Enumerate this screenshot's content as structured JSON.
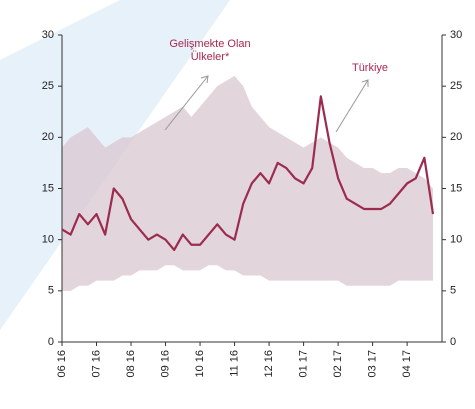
{
  "chart_data": {
    "type": "line",
    "categories": [
      "06 16",
      null,
      null,
      null,
      "07 16",
      null,
      null,
      null,
      "08 16",
      null,
      null,
      null,
      "09 16",
      null,
      null,
      null,
      "10 16",
      null,
      null,
      null,
      "11 16",
      null,
      null,
      null,
      "12 16",
      null,
      null,
      null,
      "01 17",
      null,
      null,
      null,
      "02 17",
      null,
      null,
      null,
      "03 17",
      null,
      null,
      null,
      "04 17",
      null,
      null,
      null
    ],
    "series": [
      {
        "name": "Türkiye",
        "color": "#9b2c4e",
        "values": [
          11,
          10.5,
          12.5,
          11.5,
          12.5,
          10.5,
          15,
          14,
          12,
          11,
          10,
          10.5,
          10,
          9,
          10.5,
          9.5,
          9.5,
          10.5,
          11.5,
          10.5,
          10,
          13.5,
          15.5,
          16.5,
          15.5,
          17.5,
          17,
          16,
          15.5,
          17,
          24,
          19.5,
          16,
          14,
          13.5,
          13,
          13,
          13,
          13.5,
          14.5,
          15.5,
          16,
          18,
          12.5
        ]
      },
      {
        "name": "Gelişmekte Olan Ülkeler*",
        "color": "#d9c7d0",
        "values": [
          19,
          20,
          20.5,
          21,
          20,
          19,
          19.5,
          20,
          20,
          20.5,
          21,
          21.5,
          22,
          22.5,
          23,
          22,
          23,
          24,
          25,
          25.5,
          26,
          25,
          23,
          22,
          21,
          20.5,
          20,
          19.5,
          19,
          19.5,
          20,
          19.5,
          19,
          18,
          17.5,
          17,
          17,
          16.5,
          16.5,
          17,
          17,
          16.5,
          16,
          15
        ],
        "low": [
          5,
          5,
          5.5,
          5.5,
          6,
          6,
          6,
          6.5,
          6.5,
          7,
          7,
          7,
          7.5,
          7.5,
          7,
          7,
          7,
          7.5,
          7.5,
          7,
          7,
          6.5,
          6.5,
          6.5,
          6,
          6,
          6,
          6,
          6,
          6,
          6,
          6,
          6,
          5.5,
          5.5,
          5.5,
          5.5,
          5.5,
          5.5,
          6,
          6,
          6,
          6,
          6
        ]
      }
    ],
    "ylim": [
      0,
      30
    ],
    "yticks": [
      0,
      5,
      10,
      15,
      20,
      25,
      30
    ],
    "y2lim": [
      0,
      30
    ],
    "y2ticks": [
      0,
      5,
      10,
      15,
      20,
      25,
      30
    ]
  }
}
